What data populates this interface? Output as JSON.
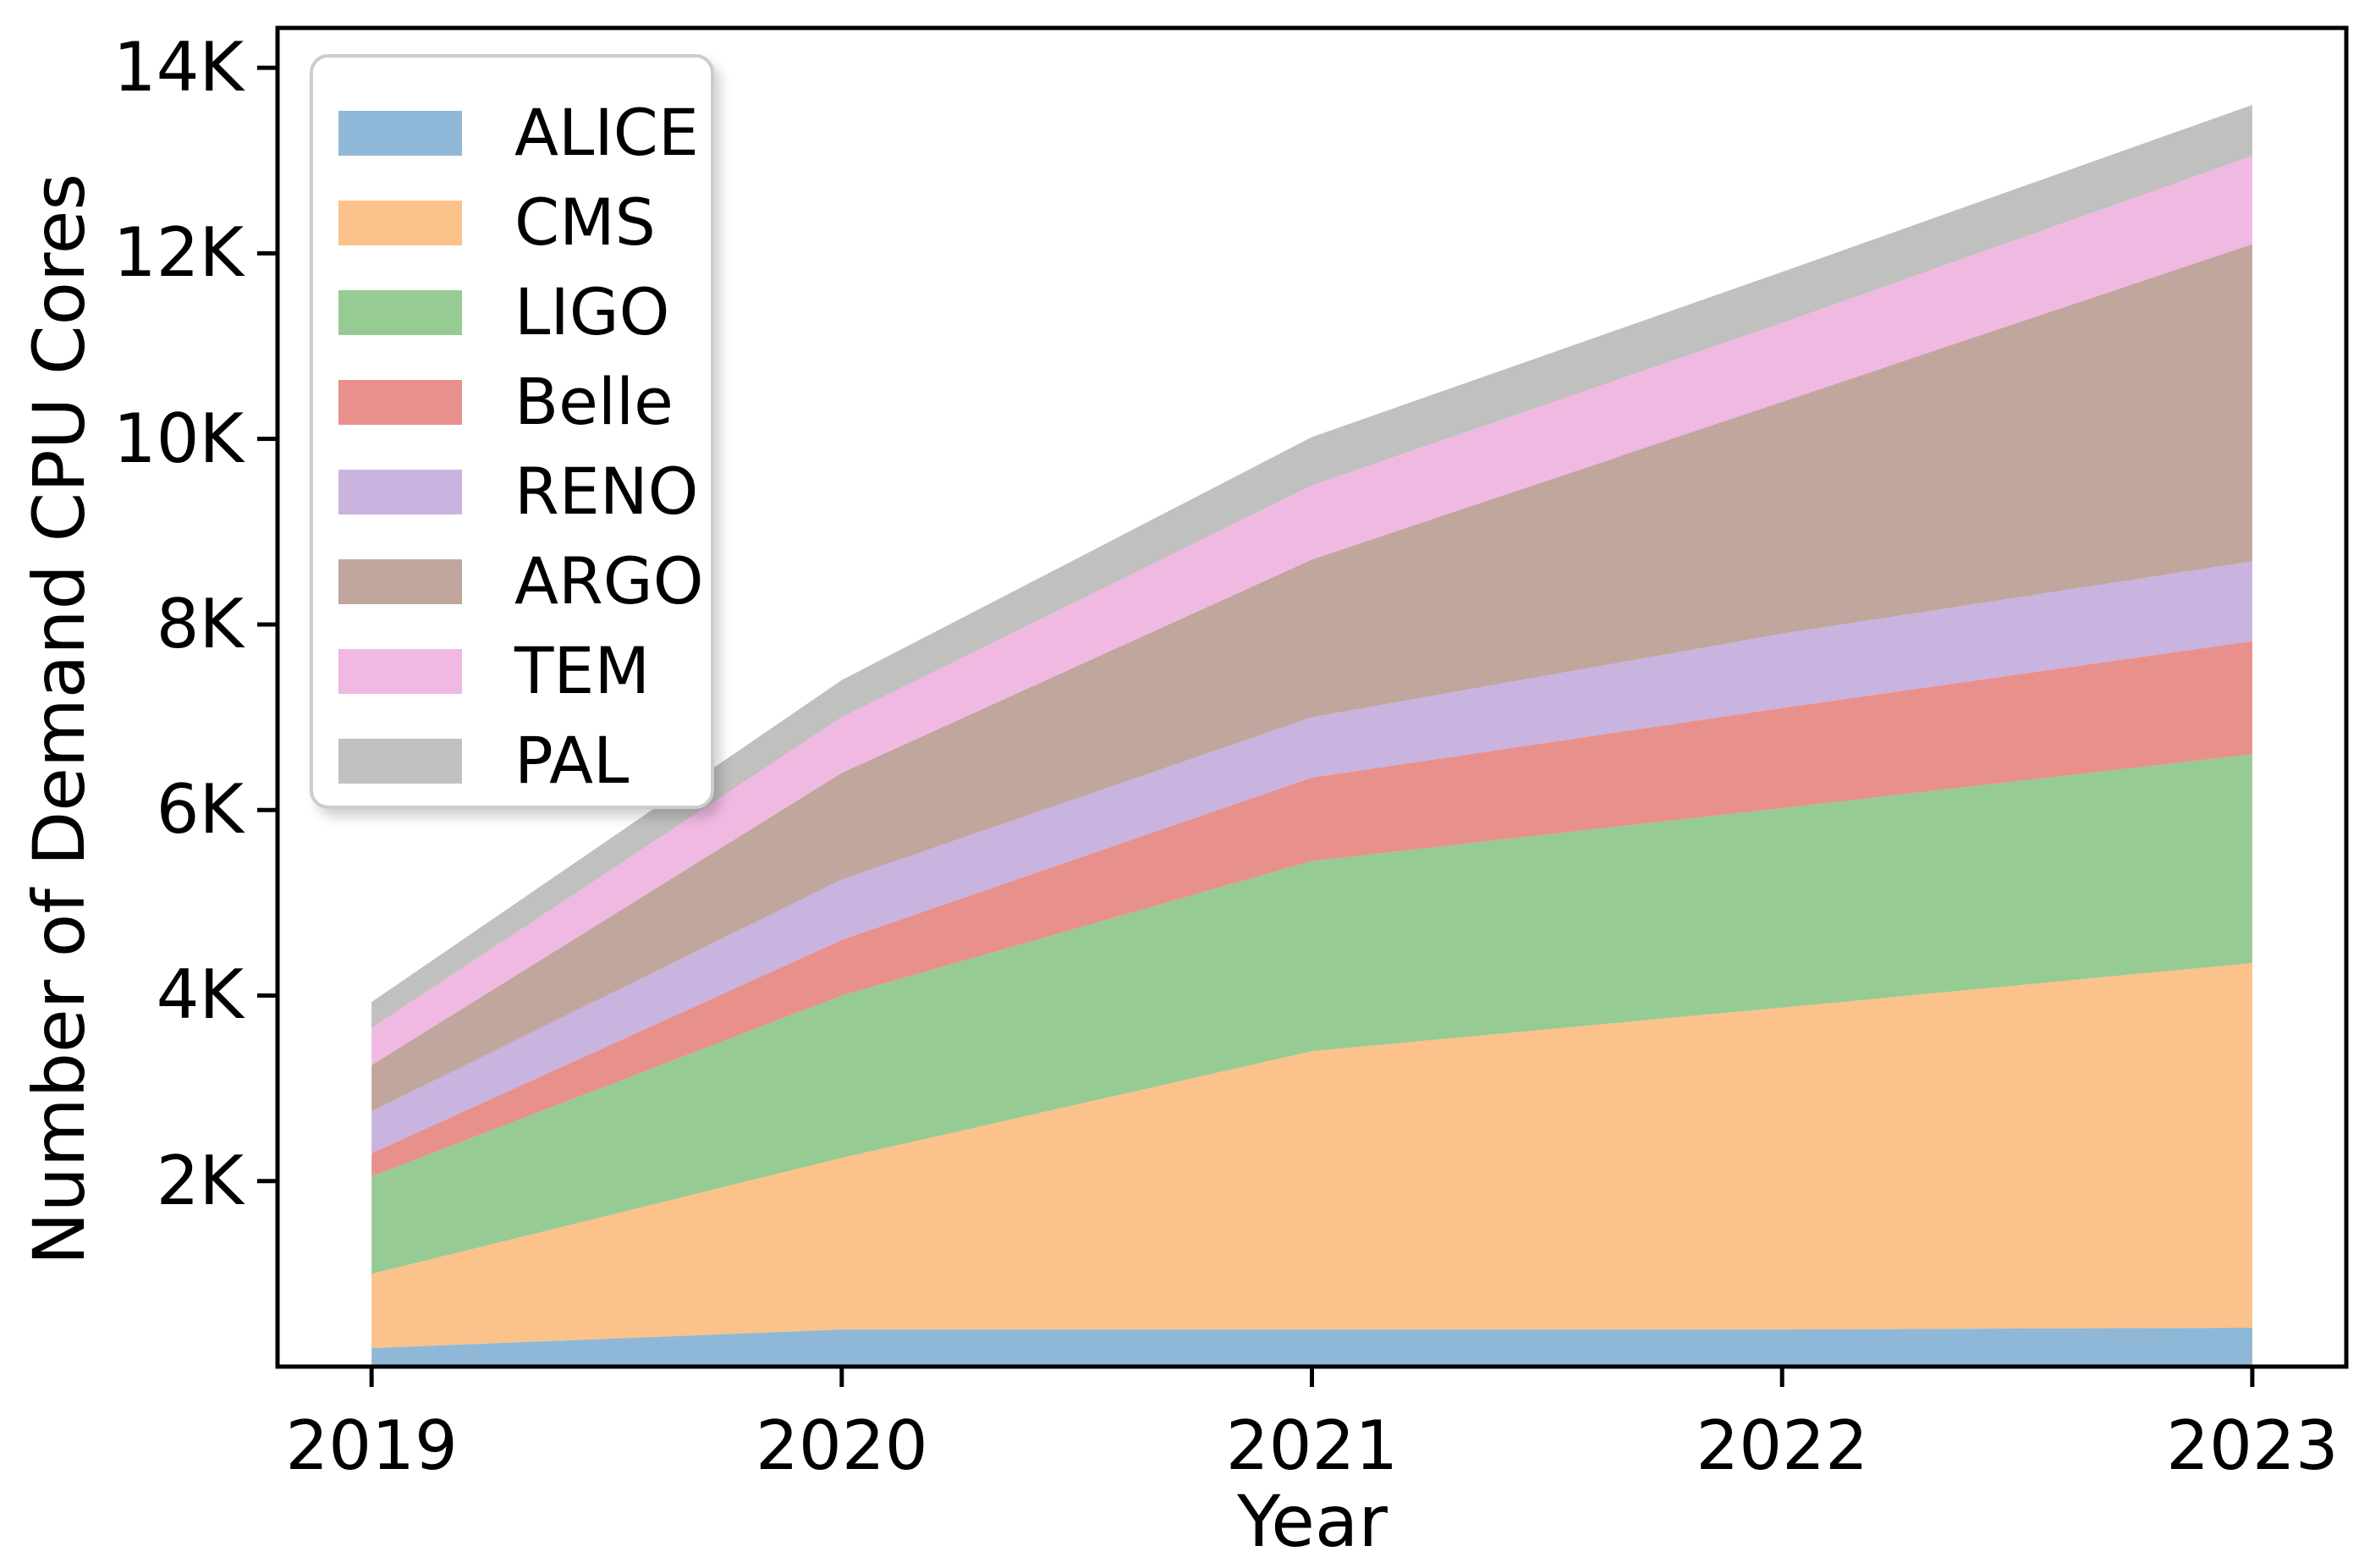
{
  "figure": {
    "background": "#ffffff",
    "text_color": "#000000",
    "spine_color": "#000000"
  },
  "chart_data": {
    "type": "area",
    "stacked": true,
    "title": "",
    "xlabel": "Year",
    "ylabel": "Number of Demand CPU Cores",
    "grid": false,
    "legend_position": "upper left",
    "x": [
      2019,
      2020,
      2021,
      2022,
      2023
    ],
    "x_tick_labels": [
      "2019",
      "2020",
      "2021",
      "2022",
      "2023"
    ],
    "y_ticks": [
      2000,
      4000,
      6000,
      8000,
      10000,
      12000,
      14000
    ],
    "y_tick_labels": [
      "2K",
      "4K",
      "6K",
      "8K",
      "10K",
      "12K",
      "14K"
    ],
    "xlim": [
      2018.8,
      2023.2
    ],
    "ylim": [
      0,
      14430
    ],
    "series": [
      {
        "name": "ALICE",
        "color": "#8FB8D8",
        "values": [
          200,
          400,
          400,
          400,
          420
        ]
      },
      {
        "name": "CMS",
        "color": "#FBC28B",
        "values": [
          800,
          1850,
          3000,
          3470,
          3930
        ]
      },
      {
        "name": "LIGO",
        "color": "#96CB93",
        "values": [
          1050,
          1750,
          2050,
          2150,
          2250
        ]
      },
      {
        "name": "Belle",
        "color": "#E8908C",
        "values": [
          250,
          600,
          900,
          1080,
          1220
        ]
      },
      {
        "name": "RENO",
        "color": "#C9B3DF",
        "values": [
          450,
          650,
          650,
          800,
          860
        ]
      },
      {
        "name": "ARGO",
        "color": "#C0A69D",
        "values": [
          500,
          1150,
          1700,
          2500,
          3420
        ]
      },
      {
        "name": "TEM",
        "color": "#F0B9E2",
        "values": [
          400,
          600,
          800,
          850,
          950
        ]
      },
      {
        "name": "PAL",
        "color": "#C0C0BF",
        "values": [
          280,
          400,
          520,
          550,
          550
        ]
      }
    ],
    "stacked_totals": [
      3930,
      7400,
      10020,
      11800,
      13600
    ]
  }
}
